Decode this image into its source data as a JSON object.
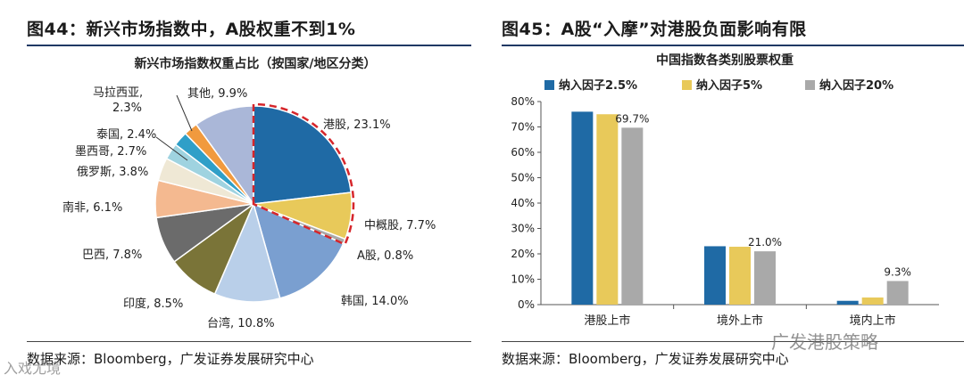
{
  "left": {
    "figure_title": "图44：新兴市场指数中，A股权重不到1%",
    "source": "数据来源：Bloomberg，广发证券发展研究中心"
  },
  "right": {
    "figure_title": "图45：A股“入摩”对港股负面影响有限",
    "source": "数据来源：Bloomberg，广发证券发展研究中心"
  },
  "watermarks": {
    "left": "入戏尤境",
    "right": "广发港股策略"
  },
  "chart_data": [
    {
      "type": "pie",
      "title": "新兴市场指数权重占比（按国家/地区分类）",
      "slices": [
        {
          "label": "港股, 23.1%",
          "name": "港股",
          "value": 23.1,
          "color": "#1f6aa5",
          "highlight": true
        },
        {
          "label": "中概股, 7.7%",
          "name": "中概股",
          "value": 7.7,
          "color": "#e8c95a",
          "highlight": true
        },
        {
          "label": "A股, 0.8%",
          "name": "A股",
          "value": 0.8,
          "color": "#a9a9a9",
          "highlight": true
        },
        {
          "label": "韩国, 14.0%",
          "name": "韩国",
          "value": 14.0,
          "color": "#7a9fd0",
          "highlight": false
        },
        {
          "label": "台湾, 10.8%",
          "name": "台湾",
          "value": 10.8,
          "color": "#b9cfe9",
          "highlight": false
        },
        {
          "label": "印度, 8.5%",
          "name": "印度",
          "value": 8.5,
          "color": "#7a7438",
          "highlight": false
        },
        {
          "label": "巴西, 7.8%",
          "name": "巴西",
          "value": 7.8,
          "color": "#6b6b6b",
          "highlight": false
        },
        {
          "label": "南非, 6.1%",
          "name": "南非",
          "value": 6.1,
          "color": "#f4b990",
          "highlight": false
        },
        {
          "label": "俄罗斯, 3.8%",
          "name": "俄罗斯",
          "value": 3.8,
          "color": "#efe8d5",
          "highlight": false
        },
        {
          "label": "墨西哥, 2.7%",
          "name": "墨西哥",
          "value": 2.7,
          "color": "#9fd3e0",
          "highlight": false
        },
        {
          "label": "泰国, 2.4%",
          "name": "泰国",
          "value": 2.4,
          "color": "#2f9fc8",
          "highlight": false
        },
        {
          "label": "马拉西亚, 2.3%",
          "name": "马拉西亚",
          "value": 2.3,
          "color": "#f19a3e",
          "highlight": false
        },
        {
          "label": "其他, 9.9%",
          "name": "其他",
          "value": 9.9,
          "color": "#aab7d8",
          "highlight": false
        }
      ]
    },
    {
      "type": "bar",
      "title": "中国指数各类别股票权重",
      "categories": [
        "港股上市",
        "境外上市",
        "境内上市"
      ],
      "series": [
        {
          "name": "纳入因子2.5%",
          "color": "#1f6aa5",
          "values": [
            76.0,
            23.0,
            1.5
          ]
        },
        {
          "name": "纳入因子5%",
          "color": "#e8c95a",
          "values": [
            75.0,
            22.8,
            2.8
          ]
        },
        {
          "name": "纳入因子20%",
          "color": "#a9a9a9",
          "values": [
            69.7,
            21.0,
            9.3
          ]
        }
      ],
      "data_labels": [
        "69.7%",
        "21.0%",
        "9.3%"
      ],
      "ylim": [
        0,
        80
      ],
      "yticks": [
        "0%",
        "10%",
        "20%",
        "30%",
        "40%",
        "50%",
        "60%",
        "70%",
        "80%"
      ],
      "legend": "top"
    }
  ]
}
